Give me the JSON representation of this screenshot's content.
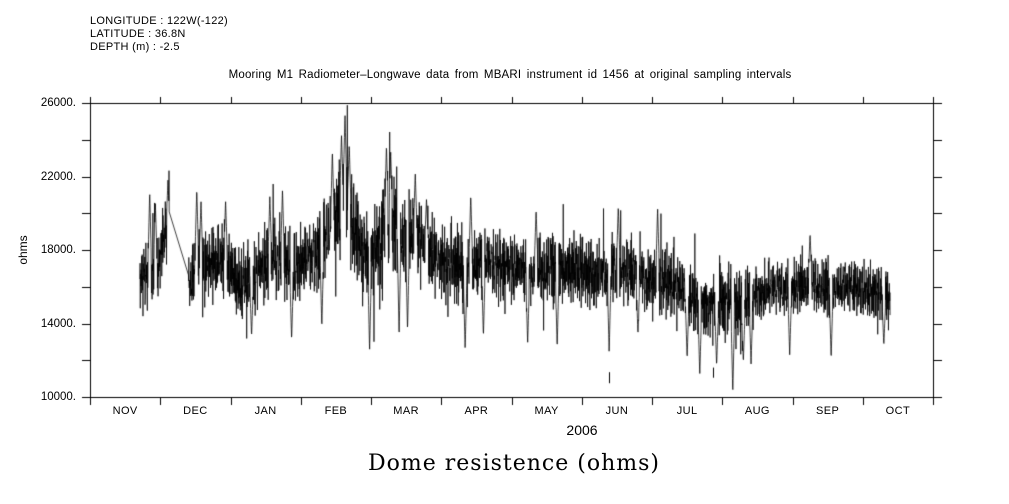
{
  "header": {
    "longitude": "LONGITUDE : 122W(-122)",
    "latitude": "LATITUDE : 36.8N",
    "depth": "DEPTH (m) : -2.5"
  },
  "title": "Mooring M1 Radiometer–Longwave data from MBARI instrument id 1456 at original sampling intervals",
  "bottom_title": "Dome resistence (ohms)",
  "colors": {
    "foreground": "#000000",
    "background": "#ffffff"
  },
  "chart_data": {
    "type": "line",
    "title": "Mooring M1 Radiometer–Longwave data from MBARI instrument id 1456 at original sampling intervals",
    "xlabel": "2006",
    "ylabel": "ohms",
    "ylim": [
      10000,
      26000
    ],
    "ytick_step": 2000,
    "ytick_labeled_values": [
      10000,
      14000,
      18000,
      22000,
      26000
    ],
    "ytick_labels": [
      "10000.",
      "14000.",
      "18000.",
      "22000.",
      "26000."
    ],
    "xtick_labels": [
      "NOV",
      "DEC",
      "JAN",
      "FEB",
      "MAR",
      "APR",
      "MAY",
      "JUN",
      "JUL",
      "AUG",
      "SEP",
      "OCT"
    ],
    "x_months": 12,
    "grid": false,
    "legend": false,
    "color": "#000000",
    "background": "#ffffff",
    "series": [
      {
        "name": "dome-resistance-ohms",
        "t_start": 0.71,
        "t_end": 11.39,
        "envelope": [
          [
            0.71,
            16300,
            1500
          ],
          [
            0.8,
            16700,
            1800
          ],
          [
            0.88,
            16500,
            1800
          ],
          [
            0.97,
            17200,
            1600
          ],
          [
            1.05,
            18600,
            1700
          ],
          [
            1.11,
            19200,
            2300
          ],
          [
            1.42,
            15800,
            1500
          ],
          [
            1.5,
            17400,
            2000
          ],
          [
            1.62,
            16900,
            2000
          ],
          [
            1.75,
            17200,
            2100
          ],
          [
            1.88,
            17500,
            2100
          ],
          [
            2.0,
            16700,
            1900
          ],
          [
            2.15,
            16300,
            1900
          ],
          [
            2.3,
            16500,
            1900
          ],
          [
            2.45,
            17000,
            2000
          ],
          [
            2.6,
            17600,
            2100
          ],
          [
            2.75,
            17300,
            2100
          ],
          [
            2.9,
            16900,
            2000
          ],
          [
            3.05,
            17400,
            1900
          ],
          [
            3.2,
            17800,
            2000
          ],
          [
            3.4,
            18700,
            2200
          ],
          [
            3.55,
            20100,
            2600
          ],
          [
            3.63,
            21100,
            2900
          ],
          [
            3.75,
            19200,
            2400
          ],
          [
            3.88,
            17900,
            2400
          ],
          [
            4.0,
            17400,
            2500
          ],
          [
            4.1,
            18200,
            2400
          ],
          [
            4.22,
            19700,
            2700
          ],
          [
            4.33,
            19400,
            2600
          ],
          [
            4.46,
            18700,
            2300
          ],
          [
            4.6,
            18900,
            2200
          ],
          [
            4.75,
            18200,
            2100
          ],
          [
            4.9,
            17700,
            2100
          ],
          [
            5.05,
            17400,
            2000
          ],
          [
            5.2,
            17200,
            2000
          ],
          [
            5.35,
            16900,
            2100
          ],
          [
            5.5,
            17200,
            1900
          ],
          [
            5.65,
            17400,
            1900
          ],
          [
            5.8,
            17100,
            1900
          ],
          [
            5.95,
            17000,
            1900
          ],
          [
            6.1,
            17100,
            1800
          ],
          [
            6.25,
            16700,
            1900
          ],
          [
            6.4,
            16900,
            1800
          ],
          [
            6.55,
            17100,
            1800
          ],
          [
            6.7,
            17000,
            1800
          ],
          [
            6.85,
            16900,
            1800
          ],
          [
            7.0,
            16900,
            1800
          ],
          [
            7.15,
            16700,
            1800
          ],
          [
            7.3,
            16800,
            1800
          ],
          [
            7.45,
            16900,
            1900
          ],
          [
            7.6,
            16700,
            1800
          ],
          [
            7.75,
            16700,
            1700
          ],
          [
            7.9,
            16500,
            1800
          ],
          [
            8.05,
            16400,
            1800
          ],
          [
            8.2,
            16400,
            1700
          ],
          [
            8.35,
            16100,
            1700
          ],
          [
            8.5,
            15600,
            1800
          ],
          [
            8.65,
            15100,
            1800
          ],
          [
            8.8,
            14900,
            1800
          ],
          [
            8.95,
            15100,
            1800
          ],
          [
            9.1,
            15200,
            1900
          ],
          [
            9.25,
            14900,
            1900
          ],
          [
            9.4,
            15300,
            1700
          ],
          [
            9.55,
            15700,
            1500
          ],
          [
            9.7,
            15900,
            1500
          ],
          [
            9.85,
            15800,
            1500
          ],
          [
            10.0,
            15900,
            1500
          ],
          [
            10.15,
            16100,
            1400
          ],
          [
            10.3,
            16200,
            1400
          ],
          [
            10.45,
            15900,
            1500
          ],
          [
            10.6,
            16000,
            1500
          ],
          [
            10.75,
            16100,
            1400
          ],
          [
            10.9,
            15900,
            1500
          ],
          [
            11.05,
            15800,
            1500
          ],
          [
            11.2,
            15600,
            1500
          ],
          [
            11.39,
            15400,
            1500
          ]
        ],
        "spikes_up": [
          [
            0.85,
            21200
          ],
          [
            0.93,
            20600
          ],
          [
            1.11,
            21800
          ],
          [
            1.52,
            21300
          ],
          [
            1.58,
            20700
          ],
          [
            1.93,
            20700
          ],
          [
            2.56,
            20900
          ],
          [
            2.74,
            21300
          ],
          [
            3.45,
            23400
          ],
          [
            3.58,
            24300
          ],
          [
            3.63,
            25400
          ],
          [
            3.69,
            23700
          ],
          [
            4.22,
            23700
          ],
          [
            4.28,
            23400
          ],
          [
            4.63,
            22200
          ],
          [
            4.79,
            20800
          ],
          [
            5.42,
            21000
          ],
          [
            6.35,
            20200
          ],
          [
            7.52,
            20400
          ],
          [
            8.08,
            20300
          ],
          [
            10.25,
            18900
          ]
        ],
        "spikes_down": [
          [
            2.3,
            13300
          ],
          [
            2.87,
            13100
          ],
          [
            3.3,
            13800
          ],
          [
            3.98,
            12500
          ],
          [
            4.4,
            13300
          ],
          [
            4.52,
            13600
          ],
          [
            5.34,
            12600
          ],
          [
            5.6,
            13300
          ],
          [
            6.23,
            12900
          ],
          [
            6.65,
            12700
          ],
          [
            7.39,
            12400
          ],
          [
            7.8,
            13400
          ],
          [
            8.5,
            12100
          ],
          [
            8.68,
            11200
          ],
          [
            8.92,
            11700
          ],
          [
            9.15,
            10200
          ],
          [
            9.3,
            11900
          ],
          [
            9.41,
            11800
          ],
          [
            9.96,
            12300
          ],
          [
            10.55,
            12100
          ],
          [
            11.3,
            12800
          ]
        ],
        "gaps": [
          [
            1.13,
            1.4
          ]
        ],
        "outlier_segments": [
          [
            7.39,
            11350,
            10750
          ],
          [
            8.87,
            11600,
            11050
          ]
        ]
      }
    ],
    "render": {
      "seed": 42,
      "samples_per_month": 340,
      "tail_probability": 0.06,
      "tail_gain": 1.8
    }
  }
}
